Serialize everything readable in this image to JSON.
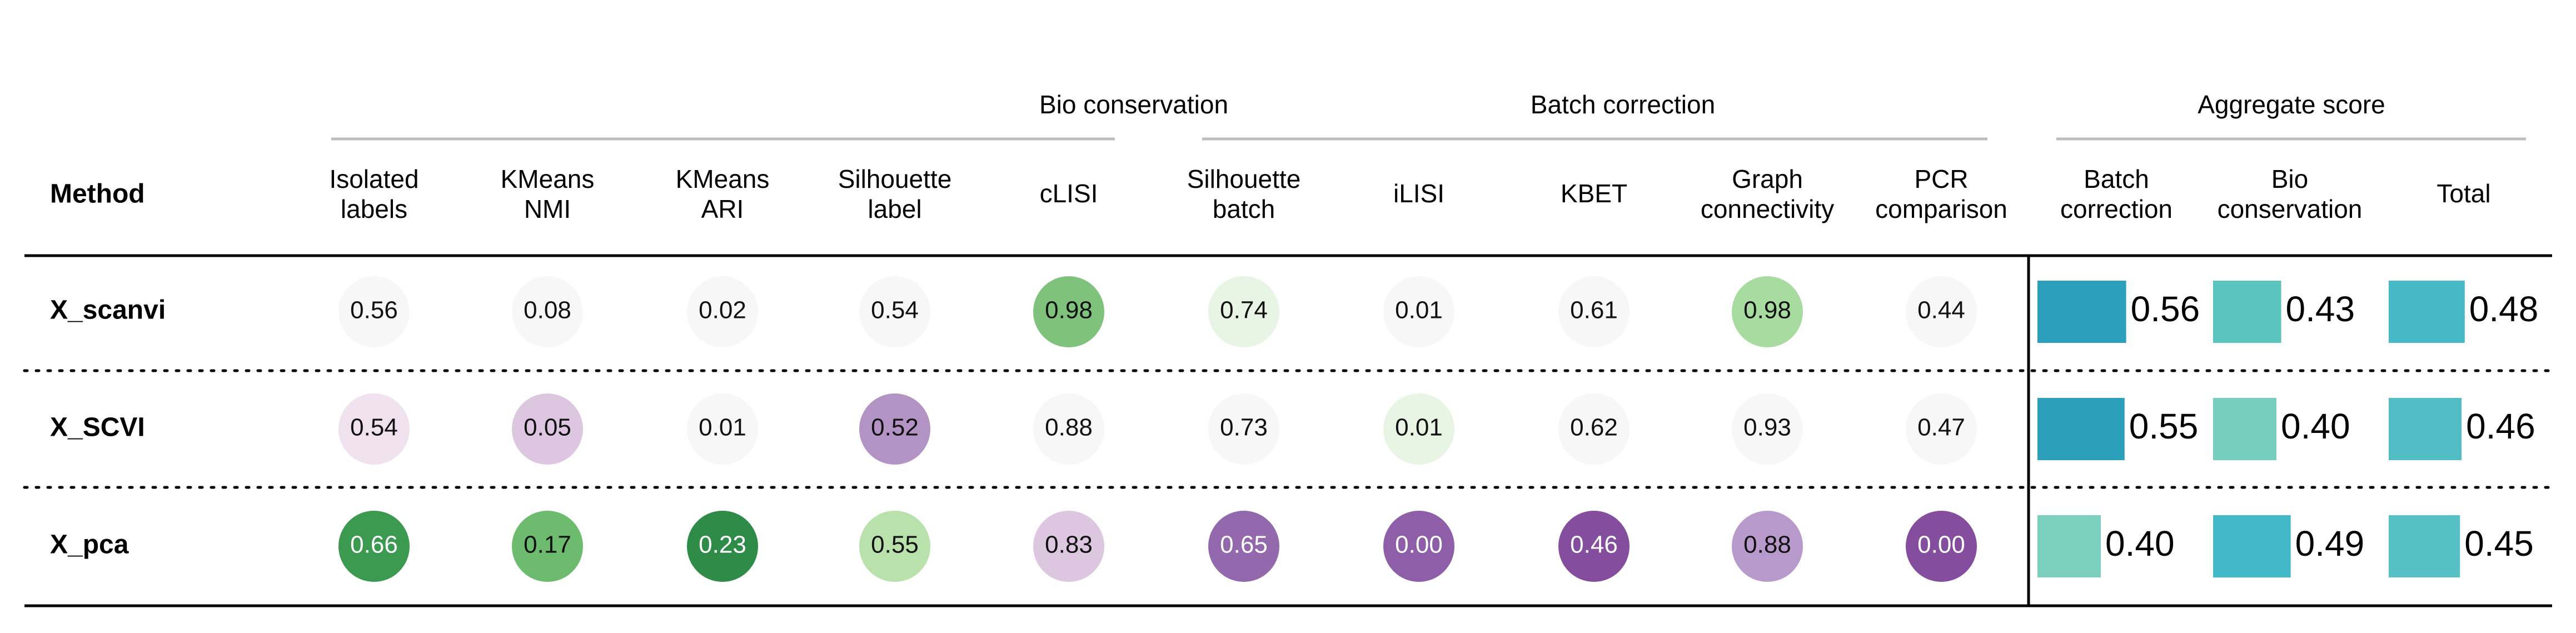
{
  "chart_data": {
    "type": "table",
    "method_header": "Method",
    "groups": [
      {
        "name": "Bio conservation",
        "columns": [
          "Isolated labels",
          "KMeans NMI",
          "KMeans ARI",
          "Silhouette label",
          "cLISI"
        ]
      },
      {
        "name": "Batch correction",
        "columns": [
          "Silhouette batch",
          "iLISI",
          "KBET",
          "Graph connectivity",
          "PCR comparison"
        ]
      },
      {
        "name": "Aggregate score",
        "columns": [
          "Batch correction",
          "Bio conservation",
          "Total"
        ]
      }
    ],
    "columns": [
      {
        "key": "isolated_labels",
        "label": [
          "Isolated",
          "labels"
        ],
        "group": "Bio conservation",
        "kind": "circle"
      },
      {
        "key": "kmeans_nmi",
        "label": [
          "KMeans",
          "NMI"
        ],
        "group": "Bio conservation",
        "kind": "circle"
      },
      {
        "key": "kmeans_ari",
        "label": [
          "KMeans",
          "ARI"
        ],
        "group": "Bio conservation",
        "kind": "circle"
      },
      {
        "key": "silhouette_label",
        "label": [
          "Silhouette",
          "label"
        ],
        "group": "Bio conservation",
        "kind": "circle"
      },
      {
        "key": "clisi",
        "label": [
          "cLISI"
        ],
        "group": "Bio conservation",
        "kind": "circle"
      },
      {
        "key": "silhouette_batch",
        "label": [
          "Silhouette",
          "batch"
        ],
        "group": "Batch correction",
        "kind": "circle"
      },
      {
        "key": "ilisi",
        "label": [
          "iLISI"
        ],
        "group": "Batch correction",
        "kind": "circle"
      },
      {
        "key": "kbet",
        "label": [
          "KBET"
        ],
        "group": "Batch correction",
        "kind": "circle"
      },
      {
        "key": "graph_connectivity",
        "label": [
          "Graph",
          "connectivity"
        ],
        "group": "Batch correction",
        "kind": "circle"
      },
      {
        "key": "pcr_comparison",
        "label": [
          "PCR",
          "comparison"
        ],
        "group": "Batch correction",
        "kind": "circle"
      },
      {
        "key": "batch_correction",
        "label": [
          "Batch",
          "correction"
        ],
        "group": "Aggregate score",
        "kind": "bar"
      },
      {
        "key": "bio_conservation",
        "label": [
          "Bio",
          "conservation"
        ],
        "group": "Aggregate score",
        "kind": "bar"
      },
      {
        "key": "total",
        "label": [
          "Total"
        ],
        "group": "Aggregate score",
        "kind": "bar"
      }
    ],
    "rows": [
      {
        "method": "X_scanvi",
        "values": [
          0.56,
          0.08,
          0.02,
          0.54,
          0.98,
          0.74,
          0.01,
          0.61,
          0.98,
          0.44,
          0.56,
          0.43,
          0.48
        ],
        "labels": [
          "0.56",
          "0.08",
          "0.02",
          "0.54",
          "0.98",
          "0.74",
          "0.01",
          "0.61",
          "0.98",
          "0.44",
          "0.56",
          "0.43",
          "0.48"
        ],
        "colors": [
          "#f7f7f7",
          "#f7f7f7",
          "#f7f7f7",
          "#f7f7f7",
          "#7ec27c",
          "#e8f4e4",
          "#f7f7f7",
          "#f7f7f7",
          "#a8dba0",
          "#f7f7f7",
          "#2b9fbb",
          "#5cc4be",
          "#47b8c6"
        ]
      },
      {
        "method": "X_SCVI",
        "values": [
          0.54,
          0.05,
          0.01,
          0.52,
          0.88,
          0.73,
          0.01,
          0.62,
          0.93,
          0.47,
          0.55,
          0.4,
          0.46
        ],
        "labels": [
          "0.54",
          "0.05",
          "0.01",
          "0.52",
          "0.88",
          "0.73",
          "0.01",
          "0.62",
          "0.93",
          "0.47",
          "0.55",
          "0.40",
          "0.46"
        ],
        "colors": [
          "#efe2ee",
          "#dcc6e0",
          "#f7f7f7",
          "#b293c4",
          "#f7f7f7",
          "#f7f7f7",
          "#e8f4e4",
          "#f7f7f7",
          "#f7f7f7",
          "#f7f7f7",
          "#2c9fbb",
          "#75cdbd",
          "#52bdc5"
        ]
      },
      {
        "method": "X_pca",
        "values": [
          0.66,
          0.17,
          0.23,
          0.55,
          0.83,
          0.65,
          0.0,
          0.46,
          0.88,
          0.0,
          0.4,
          0.49,
          0.45
        ],
        "labels": [
          "0.66",
          "0.17",
          "0.23",
          "0.55",
          "0.83",
          "0.65",
          "0.00",
          "0.46",
          "0.88",
          "0.00",
          "0.40",
          "0.49",
          "0.45"
        ],
        "colors": [
          "#3c9a50",
          "#6cbb6e",
          "#2f8c48",
          "#b8e1ac",
          "#dcc6e0",
          "#9468ad",
          "#8e5fa8",
          "#854d9e",
          "#b899cb",
          "#854d9e",
          "#7ccfbd",
          "#43b8c8",
          "#56c0c4"
        ]
      }
    ]
  }
}
